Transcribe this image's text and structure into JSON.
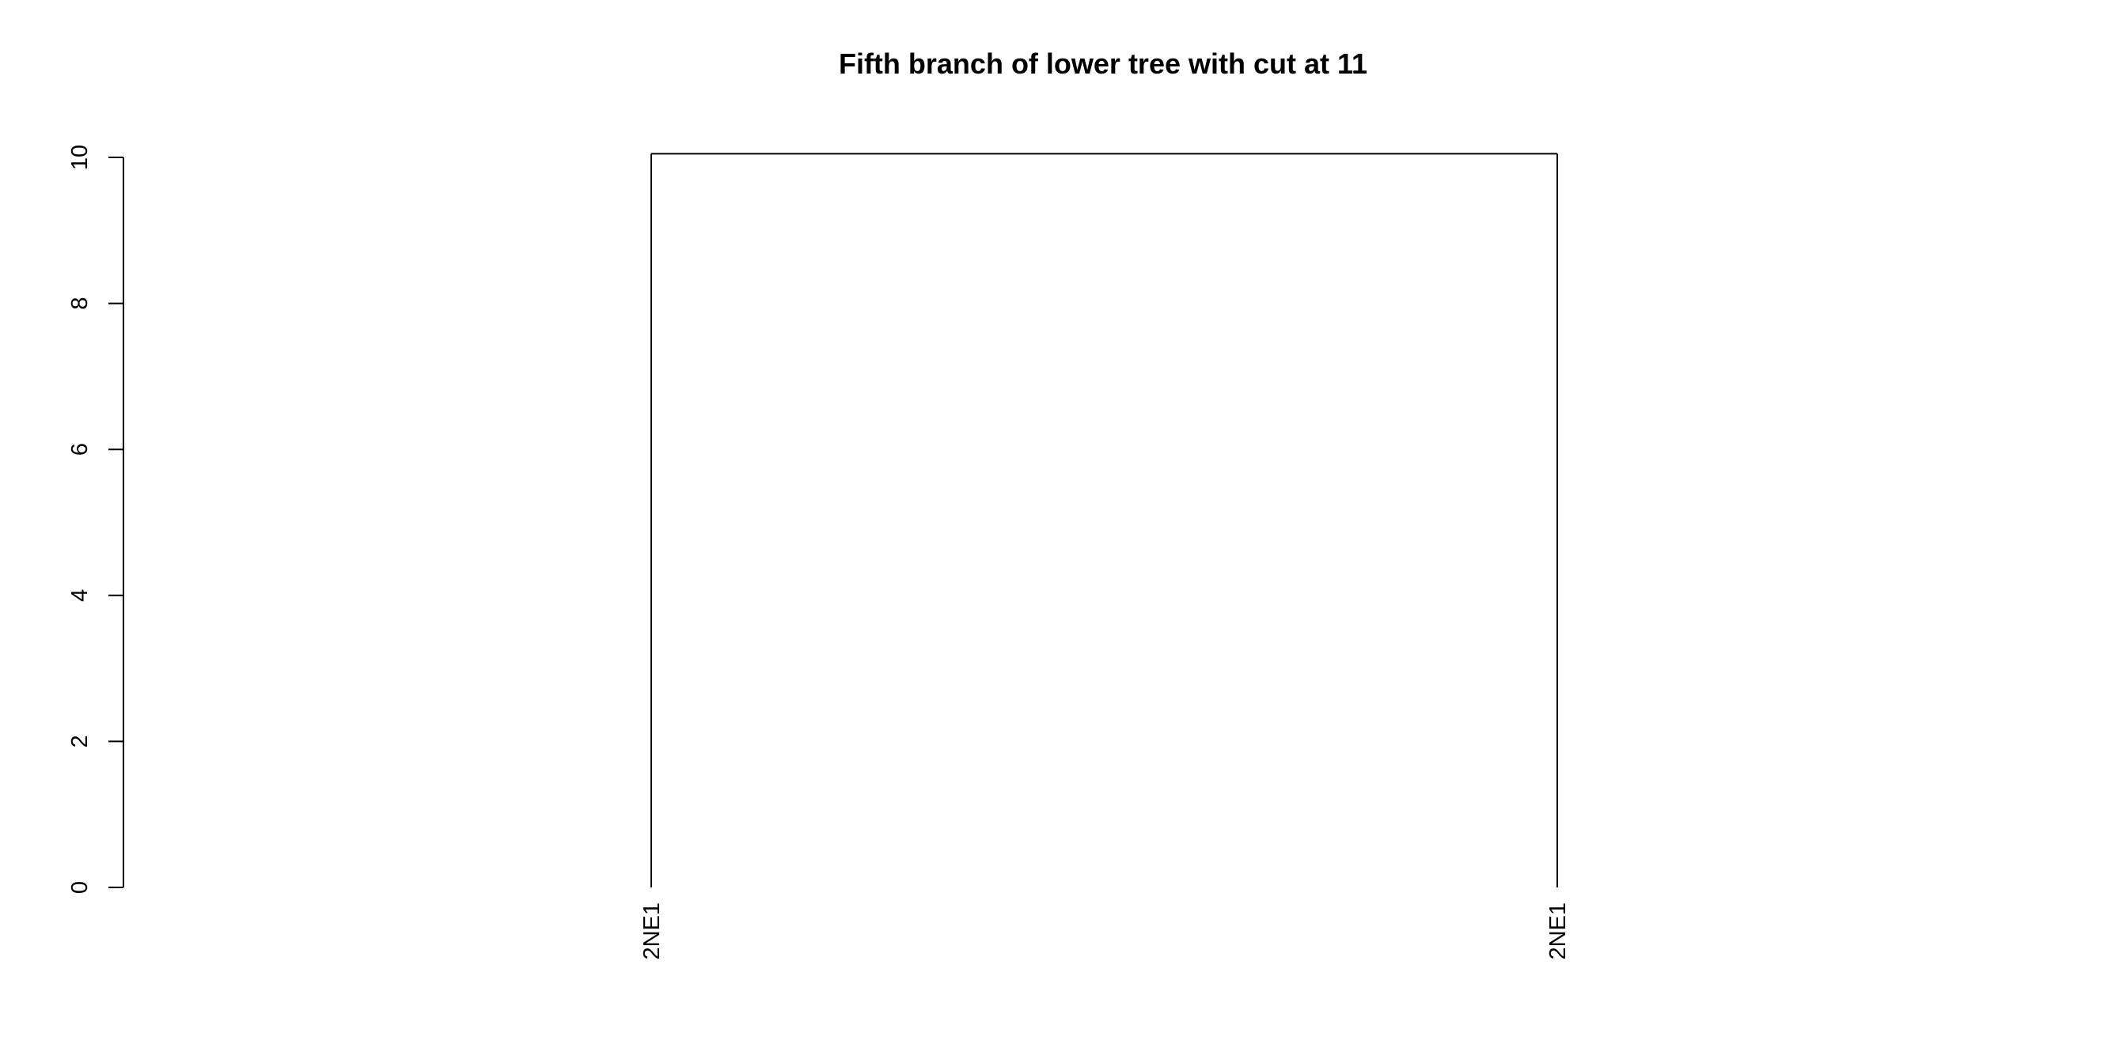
{
  "chart_data": {
    "type": "dendrogram",
    "title": "Fifth branch of lower tree with cut at 11",
    "xlabel": "",
    "ylabel": "",
    "ylim": [
      0,
      10
    ],
    "yticks": [
      "0",
      "2",
      "4",
      "6",
      "8",
      "10"
    ],
    "leaves": [
      "2NE1",
      "2NE1"
    ],
    "merges": [
      {
        "left": 0,
        "right": 1,
        "height": 10.05
      }
    ],
    "grid": false,
    "legend": "none"
  }
}
